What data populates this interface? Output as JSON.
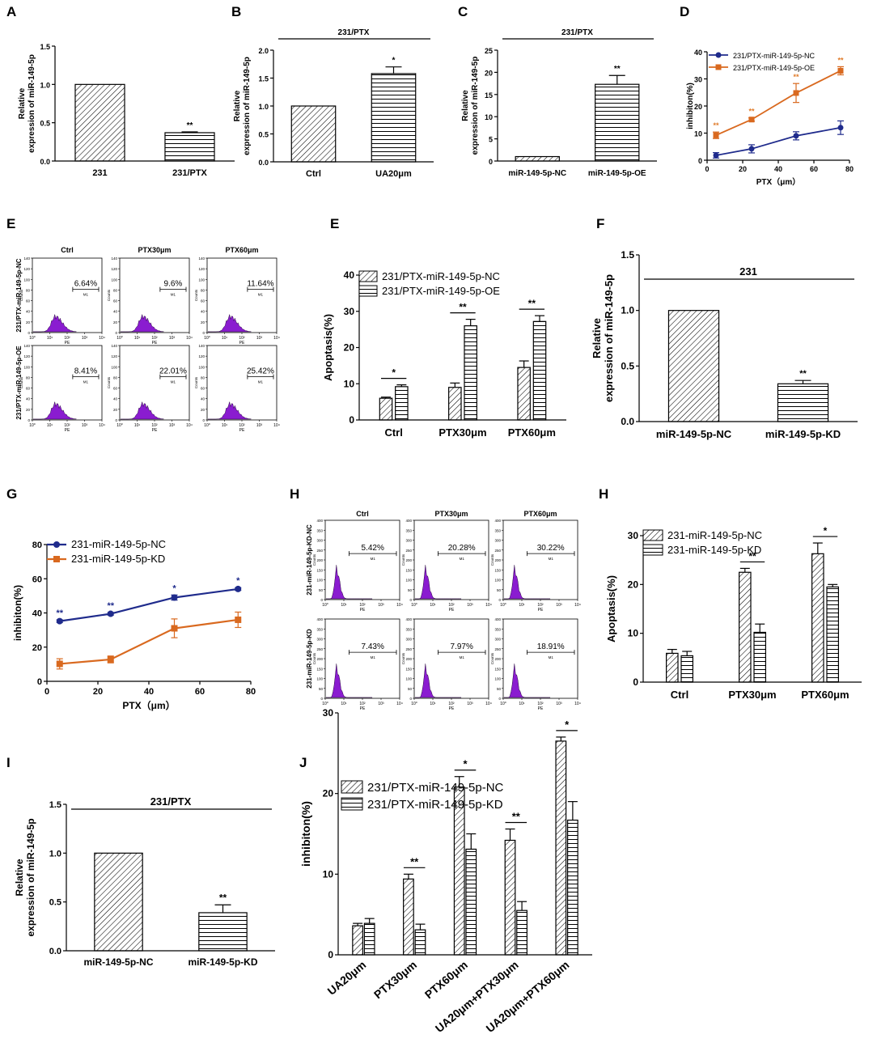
{
  "colors": {
    "nc_line": "#1f2b8c",
    "oe_line": "#d9691f",
    "histogram_fill": "#8a1cd0",
    "star_orange": "#e07b2a",
    "star_blue": "#1f2b8c"
  },
  "chart_data": [
    {
      "id": "A",
      "type": "bar",
      "panel_label": "A",
      "ylabel": [
        "Relative",
        "expression of miR-149-5p"
      ],
      "xlabel": "",
      "ylim": [
        0,
        1.5
      ],
      "yticks": [
        "0.0",
        "0.5",
        "1.0",
        "1.5"
      ],
      "categories": [
        "231",
        "231/PTX"
      ],
      "values": [
        1.0,
        0.37
      ],
      "errors": [
        0,
        0.01
      ],
      "patterns": [
        "diag",
        "horiz"
      ],
      "bar_stars": [
        "",
        "**"
      ],
      "group_title": ""
    },
    {
      "id": "B",
      "type": "bar",
      "panel_label": "B",
      "ylabel": [
        "Relative",
        "expression of miR-149-5p"
      ],
      "xlabel": "",
      "ylim": [
        0,
        2.0
      ],
      "yticks": [
        "0.0",
        "0.5",
        "1.0",
        "1.5",
        "2.0"
      ],
      "categories": [
        "Ctrl",
        "UA20μm"
      ],
      "values": [
        1.0,
        1.58
      ],
      "errors": [
        0,
        0.12
      ],
      "patterns": [
        "diag",
        "horiz"
      ],
      "bar_stars": [
        "",
        "*"
      ],
      "group_title": "231/PTX"
    },
    {
      "id": "C",
      "type": "bar",
      "panel_label": "C",
      "ylabel": [
        "Relative",
        "expression of miR-149-5p"
      ],
      "xlabel": "",
      "ylim": [
        0,
        25
      ],
      "yticks": [
        "0",
        "5",
        "10",
        "15",
        "20",
        "25"
      ],
      "categories": [
        "miR-149-5p-NC",
        "miR-149-5p-OE"
      ],
      "values": [
        1.0,
        17.3
      ],
      "errors": [
        0,
        2.0
      ],
      "patterns": [
        "diag",
        "horiz"
      ],
      "bar_stars": [
        "",
        "**"
      ],
      "group_title": "231/PTX"
    },
    {
      "id": "D",
      "type": "line",
      "panel_label": "D",
      "ylabel": "inhibiton(%)",
      "xlabel": "PTX（μm）",
      "xlim": [
        0,
        80
      ],
      "ylim": [
        0,
        40
      ],
      "xticks": [
        "0",
        "20",
        "40",
        "60",
        "80"
      ],
      "yticks": [
        "0",
        "10",
        "20",
        "30",
        "40"
      ],
      "x": [
        5,
        25,
        50,
        75
      ],
      "series": [
        {
          "name": "231/PTX-miR-149-5p-NC",
          "values": [
            1.8,
            4.2,
            9.0,
            12.0
          ],
          "errors": [
            1.0,
            1.5,
            1.5,
            2.5
          ],
          "marker": "circle"
        },
        {
          "name": "231/PTX-miR-149-5p-OE",
          "values": [
            9.2,
            15.0,
            24.8,
            33.0
          ],
          "errors": [
            1.2,
            0.6,
            3.5,
            1.5
          ],
          "marker": "square"
        }
      ],
      "stars": [
        "**",
        "**",
        "**",
        "**"
      ]
    },
    {
      "id": "E",
      "type": "bar",
      "panel_label": "E",
      "ylabel": "Apoptasis(%)",
      "xlabel": "",
      "ylim": [
        0,
        40
      ],
      "yticks": [
        "0",
        "10",
        "20",
        "30",
        "40"
      ],
      "categories": [
        "Ctrl",
        "PTX30μm",
        "PTX60μm"
      ],
      "series": [
        {
          "name": "231/PTX-miR-149-5p-NC",
          "values": [
            6.0,
            9.0,
            14.5
          ],
          "errors": [
            0.3,
            1.2,
            1.8
          ],
          "pattern": "diag"
        },
        {
          "name": "231/PTX-miR-149-5p-OE",
          "values": [
            9.2,
            26.0,
            27.2
          ],
          "errors": [
            0.5,
            1.8,
            1.6
          ],
          "pattern": "horiz"
        }
      ],
      "group_stars": [
        "*",
        "**",
        "**"
      ]
    },
    {
      "id": "F",
      "type": "bar",
      "panel_label": "F",
      "ylabel": [
        "Relative",
        "expression of miR-149-5p"
      ],
      "xlabel": "",
      "ylim": [
        0,
        1.5
      ],
      "yticks": [
        "0.0",
        "0.5",
        "1.0",
        "1.5"
      ],
      "categories": [
        "miR-149-5p-NC",
        "miR-149-5p-KD"
      ],
      "values": [
        1.0,
        0.34
      ],
      "errors": [
        0,
        0.03
      ],
      "patterns": [
        "diag",
        "horiz"
      ],
      "bar_stars": [
        "",
        "**"
      ],
      "group_title": "231"
    },
    {
      "id": "G",
      "type": "line",
      "panel_label": "G",
      "ylabel": "inhibiton(%)",
      "xlabel": "PTX（μm）",
      "xlim": [
        0,
        80
      ],
      "ylim": [
        0,
        80
      ],
      "xticks": [
        "0",
        "20",
        "40",
        "60",
        "80"
      ],
      "yticks": [
        "0",
        "20",
        "40",
        "60",
        "80"
      ],
      "x": [
        5,
        25,
        50,
        75
      ],
      "series": [
        {
          "name": "231-miR-149-5p-NC",
          "values": [
            35.2,
            39.5,
            49.0,
            54.0
          ],
          "errors": [
            0.8,
            0.8,
            1.5,
            0.8
          ],
          "marker": "circle"
        },
        {
          "name": "231-miR-149-5p-KD",
          "values": [
            10.2,
            12.8,
            31.0,
            36.0
          ],
          "errors": [
            3.0,
            2.0,
            5.5,
            4.5
          ],
          "marker": "square"
        }
      ],
      "stars": [
        "**",
        "**",
        "*",
        "*"
      ]
    },
    {
      "id": "H",
      "type": "bar",
      "panel_label": "H",
      "ylabel": "Apoptasis(%)",
      "xlabel": "",
      "ylim": [
        0,
        30
      ],
      "yticks": [
        "0",
        "10",
        "20",
        "30"
      ],
      "categories": [
        "Ctrl",
        "PTX30μm",
        "PTX60μm"
      ],
      "series": [
        {
          "name": "231-miR-149-5p-NC",
          "values": [
            5.9,
            22.5,
            26.3
          ],
          "errors": [
            0.8,
            0.8,
            2.2
          ],
          "pattern": "diag"
        },
        {
          "name": "231-miR-149-5p-KD",
          "values": [
            5.4,
            10.2,
            19.5
          ],
          "errors": [
            0.9,
            1.7,
            0.5
          ],
          "pattern": "horiz"
        }
      ],
      "group_stars": [
        "",
        "**",
        "*"
      ]
    },
    {
      "id": "I",
      "type": "bar",
      "panel_label": "I",
      "ylabel": [
        "Relative",
        "expression of miR-149-5p"
      ],
      "xlabel": "",
      "ylim": [
        0,
        1.5
      ],
      "yticks": [
        "0.0",
        "0.5",
        "1.0",
        "1.5"
      ],
      "categories": [
        "miR-149-5p-NC",
        "miR-149-5p-KD"
      ],
      "values": [
        1.0,
        0.39
      ],
      "errors": [
        0,
        0.08
      ],
      "patterns": [
        "diag",
        "horiz"
      ],
      "bar_stars": [
        "",
        "**"
      ],
      "group_title": "231/PTX"
    },
    {
      "id": "J",
      "type": "bar",
      "panel_label": "J",
      "ylabel": "inhibiton(%)",
      "xlabel": "",
      "ylim": [
        0,
        30
      ],
      "yticks": [
        "0",
        "10",
        "20",
        "30"
      ],
      "categories": [
        "UA20μm",
        "PTX30μm",
        "PTX60μm",
        "UA20μm+PTX30μm",
        "UA20μm+PTX60μm"
      ],
      "series": [
        {
          "name": "231/PTX-miR-149-5p-NC",
          "values": [
            3.6,
            9.4,
            20.8,
            14.2,
            26.5
          ],
          "errors": [
            0.3,
            0.6,
            1.3,
            1.4,
            0.5
          ],
          "pattern": "diag"
        },
        {
          "name": "231/PTX-miR-149-5p-KD",
          "values": [
            3.9,
            3.1,
            13.1,
            5.5,
            16.7
          ],
          "errors": [
            0.6,
            0.7,
            1.9,
            1.1,
            2.3
          ],
          "pattern": "horiz"
        }
      ],
      "group_stars": [
        "",
        "**",
        "*",
        "**",
        "*"
      ]
    }
  ],
  "flow_panels": [
    {
      "id": "E",
      "columns": [
        "Ctrl",
        "PTX30μm",
        "PTX60μm"
      ],
      "rows": [
        "231/PTX-miR-149-5p-NC",
        "231/PTX-miR-149-5p-OE"
      ],
      "percentages": [
        [
          "6.64%",
          "9.6%",
          "11.64%"
        ],
        [
          "8.41%",
          "22.01%",
          "25.42%"
        ]
      ],
      "gate_label": "M1",
      "xaxis": "PE",
      "yaxis": "Counts",
      "xticks": [
        "10⁰",
        "10¹",
        "10²",
        "10³",
        "10⁴"
      ],
      "yticks": [
        "0",
        "20",
        "40",
        "60",
        "80",
        "100",
        "120",
        "140"
      ]
    },
    {
      "id": "H",
      "columns": [
        "Ctrl",
        "PTX30μm",
        "PTX60μm"
      ],
      "rows": [
        "231-miR-149-5p-KD-NC",
        "231-miR-149-5p-KD"
      ],
      "percentages": [
        [
          "5.42%",
          "20.28%",
          "30.22%"
        ],
        [
          "7.43%",
          "7.97%",
          "18.91%"
        ]
      ],
      "gate_label": "M1",
      "xaxis": "PE",
      "yaxis": "Counts",
      "xticks": [
        "10⁰",
        "10¹",
        "10²",
        "10³",
        "10⁴"
      ],
      "yticks": [
        "0",
        "50",
        "100",
        "150",
        "200",
        "250",
        "300",
        "350",
        "400"
      ]
    }
  ]
}
